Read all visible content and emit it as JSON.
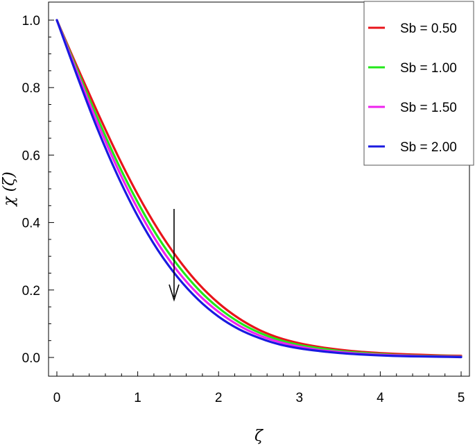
{
  "chart_data": {
    "type": "line",
    "title": "",
    "xlabel": "ζ",
    "ylabel": "χ (ζ)",
    "xlim": [
      -0.1,
      5.1
    ],
    "ylim": [
      -0.05,
      1.05
    ],
    "x_ticks": [
      "0",
      "1",
      "2",
      "3",
      "4",
      "5"
    ],
    "y_ticks": [
      "0.0",
      "0.2",
      "0.4",
      "0.6",
      "0.8",
      "1.0"
    ],
    "grid": false,
    "legend_position": "top-right",
    "annotation": "arrow pointing down near ζ ≈ 1.45, indicating decreasing χ(ζ) with increasing Sb",
    "x": [
      0,
      0.25,
      0.5,
      0.75,
      1.0,
      1.25,
      1.5,
      1.75,
      2.0,
      2.25,
      2.5,
      2.75,
      3.0,
      3.25,
      3.5,
      3.75,
      4.0,
      4.25,
      4.5,
      4.75,
      5.0
    ],
    "series": [
      {
        "name": "Sb = 0.50",
        "color": "#e8141b",
        "values": [
          1.0,
          0.862,
          0.728,
          0.6,
          0.483,
          0.38,
          0.292,
          0.219,
          0.161,
          0.116,
          0.082,
          0.058,
          0.042,
          0.031,
          0.023,
          0.017,
          0.013,
          0.01,
          0.008,
          0.006,
          0.005
        ]
      },
      {
        "name": "Sb = 1.00",
        "color": "#22e81a",
        "values": [
          1.0,
          0.853,
          0.711,
          0.578,
          0.46,
          0.357,
          0.272,
          0.202,
          0.147,
          0.105,
          0.074,
          0.052,
          0.037,
          0.027,
          0.019,
          0.014,
          0.01,
          0.007,
          0.005,
          0.004,
          0.003
        ]
      },
      {
        "name": "Sb = 1.50",
        "color": "#ee22ee",
        "values": [
          1.0,
          0.845,
          0.697,
          0.561,
          0.441,
          0.338,
          0.254,
          0.187,
          0.135,
          0.095,
          0.066,
          0.046,
          0.032,
          0.022,
          0.016,
          0.011,
          0.008,
          0.006,
          0.004,
          0.003,
          0.002
        ]
      },
      {
        "name": "Sb = 2.00",
        "color": "#1a1ae0",
        "values": [
          1.0,
          0.835,
          0.679,
          0.54,
          0.419,
          0.318,
          0.236,
          0.171,
          0.121,
          0.084,
          0.058,
          0.039,
          0.027,
          0.019,
          0.013,
          0.009,
          0.006,
          0.004,
          0.003,
          0.002,
          0.001
        ]
      }
    ]
  }
}
